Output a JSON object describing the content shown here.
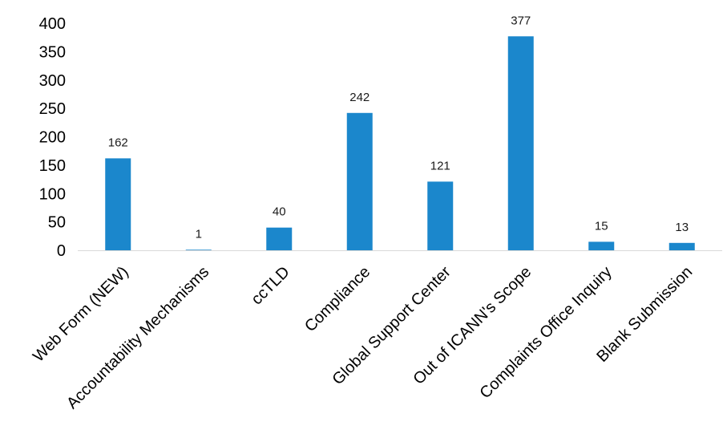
{
  "chart_data": {
    "type": "bar",
    "title": "",
    "xlabel": "",
    "ylabel": "",
    "categories": [
      "Web Form (NEW)",
      "Accountability Mechanisms",
      "ccTLD",
      "Compliance",
      "Global Support Center",
      "Out of ICANN's Scope",
      "Complaints Office Inquiry",
      "Blank Submission"
    ],
    "values": [
      162,
      1,
      40,
      242,
      121,
      377,
      15,
      13
    ],
    "data_labels": [
      "162",
      "1",
      "40",
      "242",
      "121",
      "377",
      "15",
      "13"
    ],
    "ylim": [
      0,
      400
    ],
    "y_ticks": [
      0,
      50,
      100,
      150,
      200,
      250,
      300,
      350,
      400
    ],
    "y_tick_labels": [
      "0",
      "50",
      "100",
      "150",
      "200",
      "250",
      "300",
      "350",
      "400"
    ],
    "grid": false,
    "legend": "none",
    "bar_color": "#1b87cc",
    "axis_color": "#d9d9d9"
  }
}
